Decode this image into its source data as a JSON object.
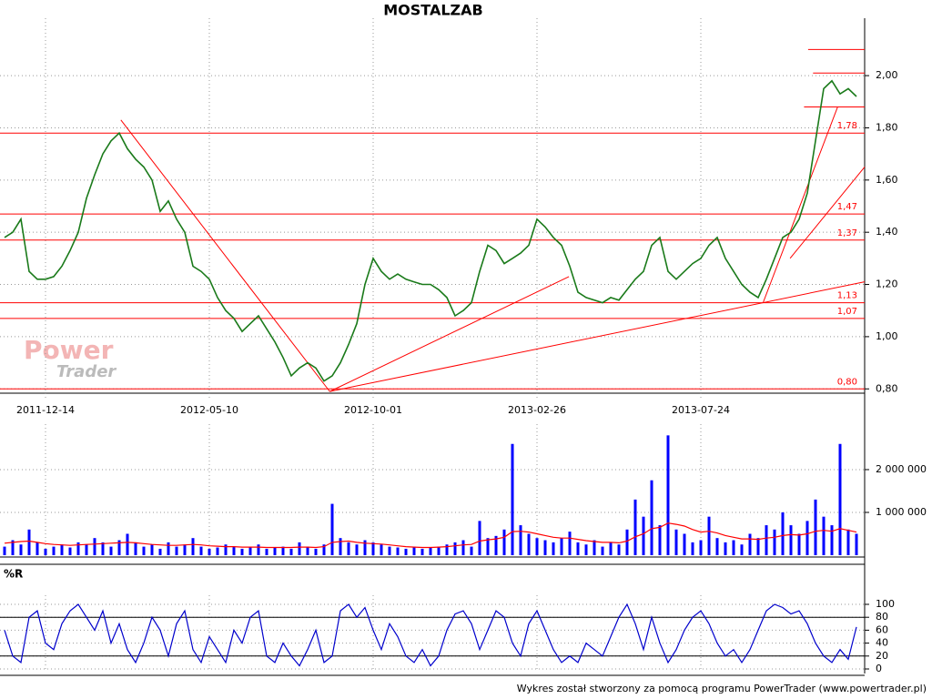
{
  "chart_data": [
    {
      "type": "line",
      "title": "MOSTALZAB",
      "color": "#1a7a1a",
      "level_color": "#ff0000",
      "watermark": [
        "Power",
        "Trader"
      ],
      "categories": [
        null,
        null,
        null,
        null,
        null,
        "2011-12-14",
        null,
        null,
        null,
        null,
        null,
        null,
        null,
        null,
        null,
        null,
        null,
        null,
        null,
        null,
        null,
        null,
        null,
        null,
        null,
        "2012-05-10",
        null,
        null,
        null,
        null,
        null,
        null,
        null,
        null,
        null,
        null,
        null,
        null,
        null,
        null,
        null,
        null,
        null,
        null,
        null,
        "2012-10-01",
        null,
        null,
        null,
        null,
        null,
        null,
        null,
        null,
        null,
        null,
        null,
        null,
        null,
        null,
        null,
        null,
        null,
        null,
        null,
        "2013-02-26",
        null,
        null,
        null,
        null,
        null,
        null,
        null,
        null,
        null,
        null,
        null,
        null,
        null,
        null,
        null,
        null,
        null,
        null,
        null,
        "2013-07-24",
        null,
        null,
        null,
        null,
        null,
        null,
        null,
        null,
        null,
        null,
        null,
        null,
        null,
        null,
        null,
        null,
        null,
        null,
        null
      ],
      "values": [
        1.38,
        1.4,
        1.45,
        1.25,
        1.22,
        1.22,
        1.23,
        1.27,
        1.33,
        1.4,
        1.53,
        1.62,
        1.7,
        1.75,
        1.78,
        1.72,
        1.68,
        1.65,
        1.6,
        1.48,
        1.52,
        1.45,
        1.4,
        1.27,
        1.25,
        1.22,
        1.15,
        1.1,
        1.07,
        1.02,
        1.05,
        1.08,
        1.03,
        0.98,
        0.92,
        0.85,
        0.88,
        0.9,
        0.88,
        0.83,
        0.85,
        0.9,
        0.97,
        1.05,
        1.2,
        1.3,
        1.25,
        1.22,
        1.24,
        1.22,
        1.21,
        1.2,
        1.2,
        1.18,
        1.15,
        1.08,
        1.1,
        1.13,
        1.25,
        1.35,
        1.33,
        1.28,
        1.3,
        1.32,
        1.35,
        1.45,
        1.42,
        1.38,
        1.35,
        1.27,
        1.17,
        1.15,
        1.14,
        1.13,
        1.15,
        1.14,
        1.18,
        1.22,
        1.25,
        1.35,
        1.38,
        1.25,
        1.22,
        1.25,
        1.28,
        1.3,
        1.35,
        1.38,
        1.3,
        1.25,
        1.2,
        1.17,
        1.15,
        1.22,
        1.3,
        1.38,
        1.4,
        1.45,
        1.55,
        1.75,
        1.95,
        1.98,
        1.93,
        1.95,
        1.92
      ],
      "ylim": [
        0.78,
        2.22
      ],
      "yticks": [
        {
          "value": 0.8,
          "label": "0,80"
        },
        {
          "value": 1.0,
          "label": "1,00"
        },
        {
          "value": 1.2,
          "label": "1,20"
        },
        {
          "value": 1.4,
          "label": "1,40"
        },
        {
          "value": 1.6,
          "label": "1,60"
        },
        {
          "value": 1.8,
          "label": "1,80"
        },
        {
          "value": 2.0,
          "label": "2,00"
        }
      ],
      "levels": [
        {
          "value": 1.78,
          "label": "1,78"
        },
        {
          "value": 1.47,
          "label": "1,47"
        },
        {
          "value": 1.37,
          "label": "1,37"
        },
        {
          "value": 1.13,
          "label": "1,13"
        },
        {
          "value": 1.07,
          "label": "1,07"
        },
        {
          "value": 0.8,
          "label": "0,80"
        }
      ],
      "short_levels": [
        {
          "value": 2.1,
          "from": 98.1
        },
        {
          "value": 2.01,
          "from": 98.7
        },
        {
          "value": 1.88,
          "from": 97.6
        }
      ],
      "trendlines": [
        {
          "from": [
            14.2,
            1.83
          ],
          "to": [
            39.7,
            0.79
          ]
        },
        {
          "from": [
            39.7,
            0.79
          ],
          "to": [
            68.9,
            1.23
          ]
        },
        {
          "from": [
            39.7,
            0.79
          ],
          "to": [
            105,
            1.21
          ]
        },
        {
          "from": [
            95.9,
            1.3
          ],
          "to": [
            105,
            1.65
          ]
        },
        {
          "from": [
            92.6,
            1.13
          ],
          "to": [
            101.7,
            1.88
          ]
        }
      ],
      "grid": true
    },
    {
      "type": "bar",
      "series": [
        {
          "color": "#0000ff",
          "values": [
            200000,
            350000,
            250000,
            600000,
            300000,
            150000,
            200000,
            250000,
            180000,
            300000,
            250000,
            400000,
            300000,
            200000,
            350000,
            500000,
            300000,
            200000,
            250000,
            150000,
            300000,
            200000,
            250000,
            400000,
            200000,
            150000,
            180000,
            250000,
            200000,
            150000,
            200000,
            250000,
            150000,
            180000,
            200000,
            150000,
            300000,
            200000,
            150000,
            250000,
            1200000,
            400000,
            300000,
            250000,
            350000,
            300000,
            250000,
            200000,
            180000,
            150000,
            200000,
            150000,
            180000,
            200000,
            250000,
            300000,
            350000,
            200000,
            800000,
            400000,
            450000,
            600000,
            2600000,
            700000,
            500000,
            400000,
            350000,
            300000,
            400000,
            550000,
            300000,
            250000,
            350000,
            200000,
            300000,
            250000,
            600000,
            1300000,
            900000,
            1750000,
            700000,
            2800000,
            600000,
            500000,
            300000,
            350000,
            900000,
            400000,
            300000,
            350000,
            250000,
            500000,
            400000,
            700000,
            600000,
            1000000,
            700000,
            500000,
            800000,
            1300000,
            900000,
            700000,
            2600000,
            600000,
            500000
          ]
        },
        {
          "color": "#ff0000",
          "values": [
            280000,
            300000,
            320000,
            330000,
            300000,
            270000,
            250000,
            240000,
            230000,
            240000,
            250000,
            260000,
            270000,
            280000,
            290000,
            300000,
            290000,
            270000,
            250000,
            240000,
            230000,
            230000,
            240000,
            250000,
            240000,
            220000,
            210000,
            200000,
            200000,
            190000,
            190000,
            190000,
            180000,
            180000,
            180000,
            180000,
            190000,
            190000,
            180000,
            200000,
            300000,
            320000,
            330000,
            300000,
            280000,
            270000,
            260000,
            240000,
            220000,
            200000,
            190000,
            180000,
            180000,
            190000,
            200000,
            220000,
            240000,
            250000,
            330000,
            360000,
            380000,
            420000,
            550000,
            560000,
            540000,
            500000,
            460000,
            420000,
            400000,
            400000,
            370000,
            340000,
            320000,
            300000,
            300000,
            290000,
            330000,
            430000,
            500000,
            620000,
            650000,
            750000,
            720000,
            680000,
            600000,
            540000,
            560000,
            520000,
            460000,
            420000,
            380000,
            380000,
            370000,
            400000,
            420000,
            460000,
            480000,
            470000,
            500000,
            560000,
            580000,
            560000,
            620000,
            580000,
            540000
          ]
        }
      ],
      "ylim": [
        0,
        2850000
      ],
      "yticks": [
        {
          "value": 1000000,
          "label": "1 000 000"
        },
        {
          "value": 2000000,
          "label": "2 000 000"
        }
      ],
      "grid": true
    },
    {
      "type": "line",
      "title": "%R",
      "color": "#0000cc",
      "values": [
        60,
        20,
        10,
        80,
        90,
        40,
        30,
        70,
        90,
        100,
        80,
        60,
        90,
        40,
        70,
        30,
        10,
        40,
        80,
        60,
        20,
        70,
        90,
        30,
        10,
        50,
        30,
        10,
        60,
        40,
        80,
        90,
        20,
        10,
        40,
        20,
        5,
        30,
        60,
        10,
        20,
        90,
        100,
        80,
        95,
        60,
        30,
        70,
        50,
        20,
        10,
        30,
        5,
        20,
        60,
        85,
        90,
        70,
        30,
        60,
        90,
        80,
        40,
        20,
        70,
        90,
        60,
        30,
        10,
        20,
        10,
        40,
        30,
        20,
        50,
        80,
        100,
        70,
        30,
        80,
        40,
        10,
        30,
        60,
        80,
        90,
        70,
        40,
        20,
        30,
        10,
        30,
        60,
        90,
        100,
        95,
        85,
        90,
        70,
        40,
        20,
        10,
        30,
        15,
        65
      ],
      "ylim": [
        0,
        100
      ],
      "yticks": [
        0,
        20,
        40,
        60,
        80,
        100
      ],
      "levels": [
        20,
        80
      ],
      "grid": true
    }
  ],
  "footer": "Wykres został stworzony za pomocą programu PowerTrader (www.powertrader.pl)"
}
